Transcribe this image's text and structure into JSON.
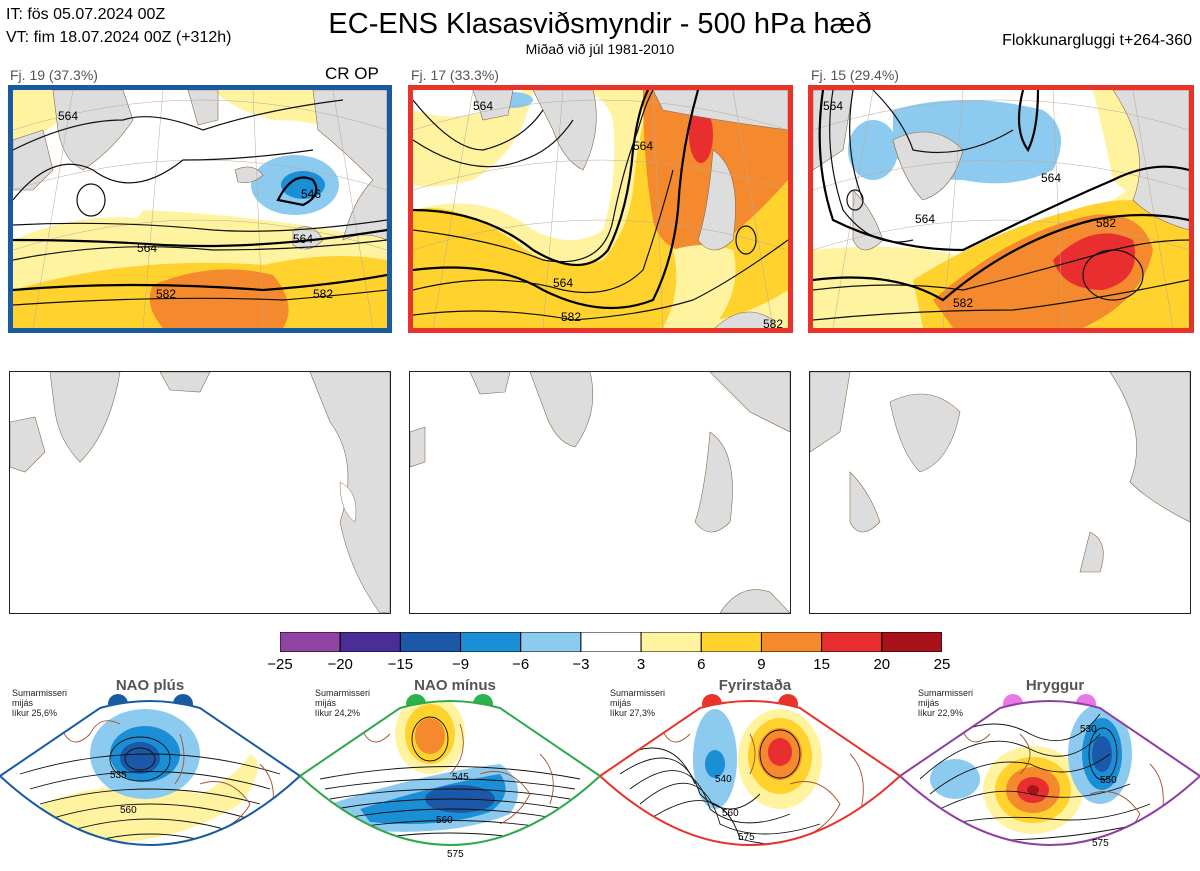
{
  "header": {
    "it_line": "IT: fös 05.07.2024 00Z",
    "vt_line": "VT: fim 18.07.2024 00Z  (+312h)",
    "title": "EC-ENS Klasasviðsmyndir - 500 hPa hæð",
    "subtitle": "Miðað við júl 1981-2010",
    "window": "Flokkunargluggi t+264-360"
  },
  "panels": [
    {
      "label": "Fj. 19 (37.3%)",
      "tag": "CR OP",
      "frame_color": "#1a5aa0",
      "contour_labels": [
        "564",
        "582",
        "582",
        "564",
        "546",
        "564"
      ]
    },
    {
      "label": "Fj. 17 (33.3%)",
      "tag": "",
      "frame_color": "#e8322a",
      "contour_labels": [
        "564",
        "564",
        "582",
        "582",
        "564"
      ]
    },
    {
      "label": "Fj. 15 (29.4%)",
      "tag": "",
      "frame_color": "#e8322a",
      "contour_labels": [
        "564",
        "564",
        "582",
        "582",
        "564"
      ]
    }
  ],
  "chart_data": {
    "type": "heatmap",
    "title": "EC-ENS Klasasviðsmyndir - 500 hPa hæð",
    "colorbar": {
      "ticks": [
        "−25",
        "−20",
        "−15",
        "−9",
        "−6",
        "−3",
        "3",
        "6",
        "9",
        "15",
        "20",
        "25"
      ],
      "colors": [
        "#8e44a0",
        "#4b2d97",
        "#1c58a8",
        "#1b8fd6",
        "#8ccbef",
        "#ffffff",
        "#fff3a0",
        "#ffd22e",
        "#f5892e",
        "#e82e2e",
        "#a8121a"
      ]
    }
  },
  "regimes": [
    {
      "name": "NAO plús",
      "note": [
        "Sumarmisseri",
        "mijás",
        "líkur 25,6%"
      ],
      "color": "#1a5aa0",
      "dot_color": "#1a5aa0",
      "labels": [
        "535",
        "560"
      ]
    },
    {
      "name": "NAO mínus",
      "note": [
        "Sumarmisseri",
        "mijás",
        "líkur 24,2%"
      ],
      "color": "#2ea84a",
      "dot_color": "#2bb24c",
      "labels": [
        "545",
        "560",
        "575"
      ]
    },
    {
      "name": "Fyrirstaða",
      "note": [
        "Sumarmisseri",
        "mijás",
        "líkur 27,3%"
      ],
      "color": "#e8322a",
      "dot_color": "#e8322a",
      "labels": [
        "540",
        "560",
        "575"
      ]
    },
    {
      "name": "Hryggur",
      "note": [
        "Sumarmisseri",
        "mijás",
        "líkur 22,9%"
      ],
      "color": "#8e3fa0",
      "dot_color": "#e878e8",
      "labels": [
        "530",
        "550",
        "575"
      ]
    }
  ]
}
